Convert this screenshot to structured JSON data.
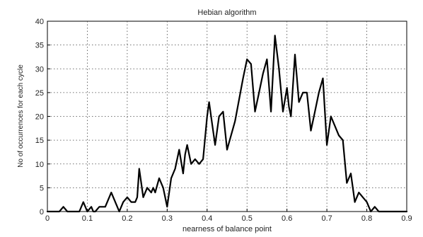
{
  "chart_data": {
    "type": "line",
    "title": "Hebian algorithm",
    "xlabel": "nearness of balance point",
    "ylabel": "No of occurrences for each cycle",
    "xlim": [
      0,
      0.9
    ],
    "ylim": [
      0,
      40
    ],
    "xticks": [
      "0",
      "0.1",
      "0.2",
      "0.3",
      "0.4",
      "0.5",
      "0.6",
      "0.7",
      "0.8",
      "0.9"
    ],
    "yticks": [
      "0",
      "5",
      "10",
      "15",
      "20",
      "25",
      "30",
      "35",
      "40"
    ],
    "grid": true,
    "series": [
      {
        "color": "#000000",
        "x": [
          0,
          0.03,
          0.04,
          0.05,
          0.08,
          0.09,
          0.1,
          0.11,
          0.115,
          0.12,
          0.13,
          0.145,
          0.16,
          0.175,
          0.18,
          0.19,
          0.2,
          0.21,
          0.215,
          0.22,
          0.225,
          0.23,
          0.24,
          0.25,
          0.26,
          0.265,
          0.27,
          0.28,
          0.29,
          0.3,
          0.31,
          0.32,
          0.33,
          0.34,
          0.345,
          0.35,
          0.36,
          0.37,
          0.38,
          0.39,
          0.4,
          0.405,
          0.41,
          0.42,
          0.43,
          0.44,
          0.45,
          0.47,
          0.49,
          0.5,
          0.51,
          0.52,
          0.53,
          0.54,
          0.55,
          0.56,
          0.565,
          0.57,
          0.58,
          0.59,
          0.6,
          0.605,
          0.61,
          0.62,
          0.63,
          0.64,
          0.65,
          0.66,
          0.67,
          0.68,
          0.69,
          0.7,
          0.71,
          0.72,
          0.73,
          0.74,
          0.75,
          0.76,
          0.77,
          0.78,
          0.79,
          0.8,
          0.81,
          0.82,
          0.83,
          0.84,
          0.85,
          0.86,
          0.9
        ],
        "y": [
          0,
          0,
          1,
          0,
          0,
          2,
          0,
          1,
          0,
          0,
          1,
          1,
          4,
          1,
          0,
          2,
          3,
          2,
          2,
          2,
          3,
          9,
          3,
          5,
          4,
          5,
          4,
          7,
          5,
          1,
          7,
          9,
          13,
          8,
          12,
          14,
          10,
          11,
          10,
          11,
          20,
          23,
          20,
          14,
          20,
          21,
          13,
          19,
          28,
          32,
          31,
          21,
          25,
          29,
          32,
          21,
          29,
          37,
          30,
          21,
          26,
          22,
          20,
          33,
          23,
          25,
          25,
          17,
          21,
          25,
          28,
          14,
          20,
          18,
          16,
          15,
          6,
          8,
          2,
          4,
          3,
          2,
          0,
          1,
          0,
          0,
          0,
          0,
          0
        ]
      }
    ]
  }
}
